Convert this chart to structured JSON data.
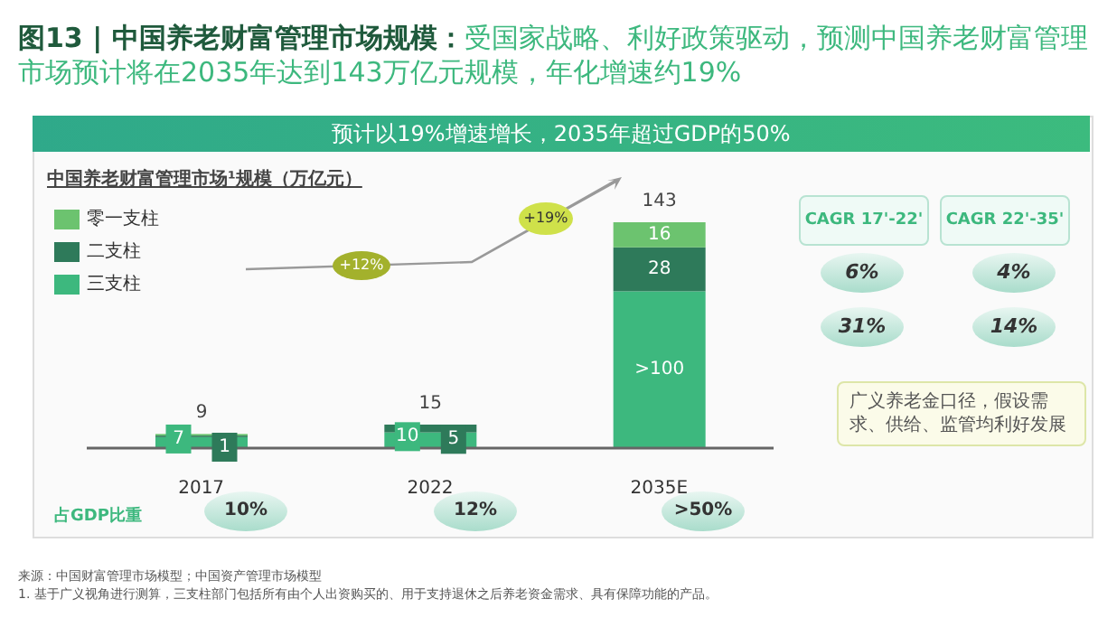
{
  "chart_data": {
    "type": "bar",
    "stacked": true,
    "title": "图13 | 中国养老财富管理市场规模：",
    "subtitle": "受国家战略、利好政策驱动，预测中国养老财富管理市场预计将在2035年达到143万亿元规模，年化增速约19%",
    "ylabel": "中国养老财富管理市场¹规模（万亿元）",
    "categories": [
      "2017",
      "2022",
      "2035E"
    ],
    "series": [
      {
        "name": "三支柱",
        "color": "#3db87e",
        "values": [
          7,
          10,
          100
        ],
        "value_labels": [
          "7",
          "10",
          ">100"
        ]
      },
      {
        "name": "二支柱",
        "color": "#2e7a5a",
        "values": [
          1,
          5,
          28
        ],
        "value_labels": [
          "1",
          "5",
          "28"
        ]
      },
      {
        "name": "零一支柱",
        "color": "#6cc36f",
        "values": [
          1,
          null,
          16
        ],
        "value_labels": [
          null,
          null,
          "16"
        ]
      }
    ],
    "totals": [
      "9",
      "15",
      "143"
    ],
    "legend": "top left",
    "annotations": [
      "预计以19%增速增长，2035年超过GDP的50%",
      "+12%",
      "+19%",
      "占GDP比重",
      "10%",
      "12%",
      ">50%",
      "CAGR 17'-22'",
      "CAGR 22'-35'",
      "6%",
      "4%",
      "31%",
      "14%",
      "广义养老金口径，假设需求、供给、监管均利好发展",
      "来源：中国财富管理市场模型；中国资产管理市场模型",
      "1. 基于广义视角进行测算，三支柱部门包括所有由个人出资购买的、用于支持退休之后养老资金需求、具有保障功能的产品。"
    ]
  }
}
